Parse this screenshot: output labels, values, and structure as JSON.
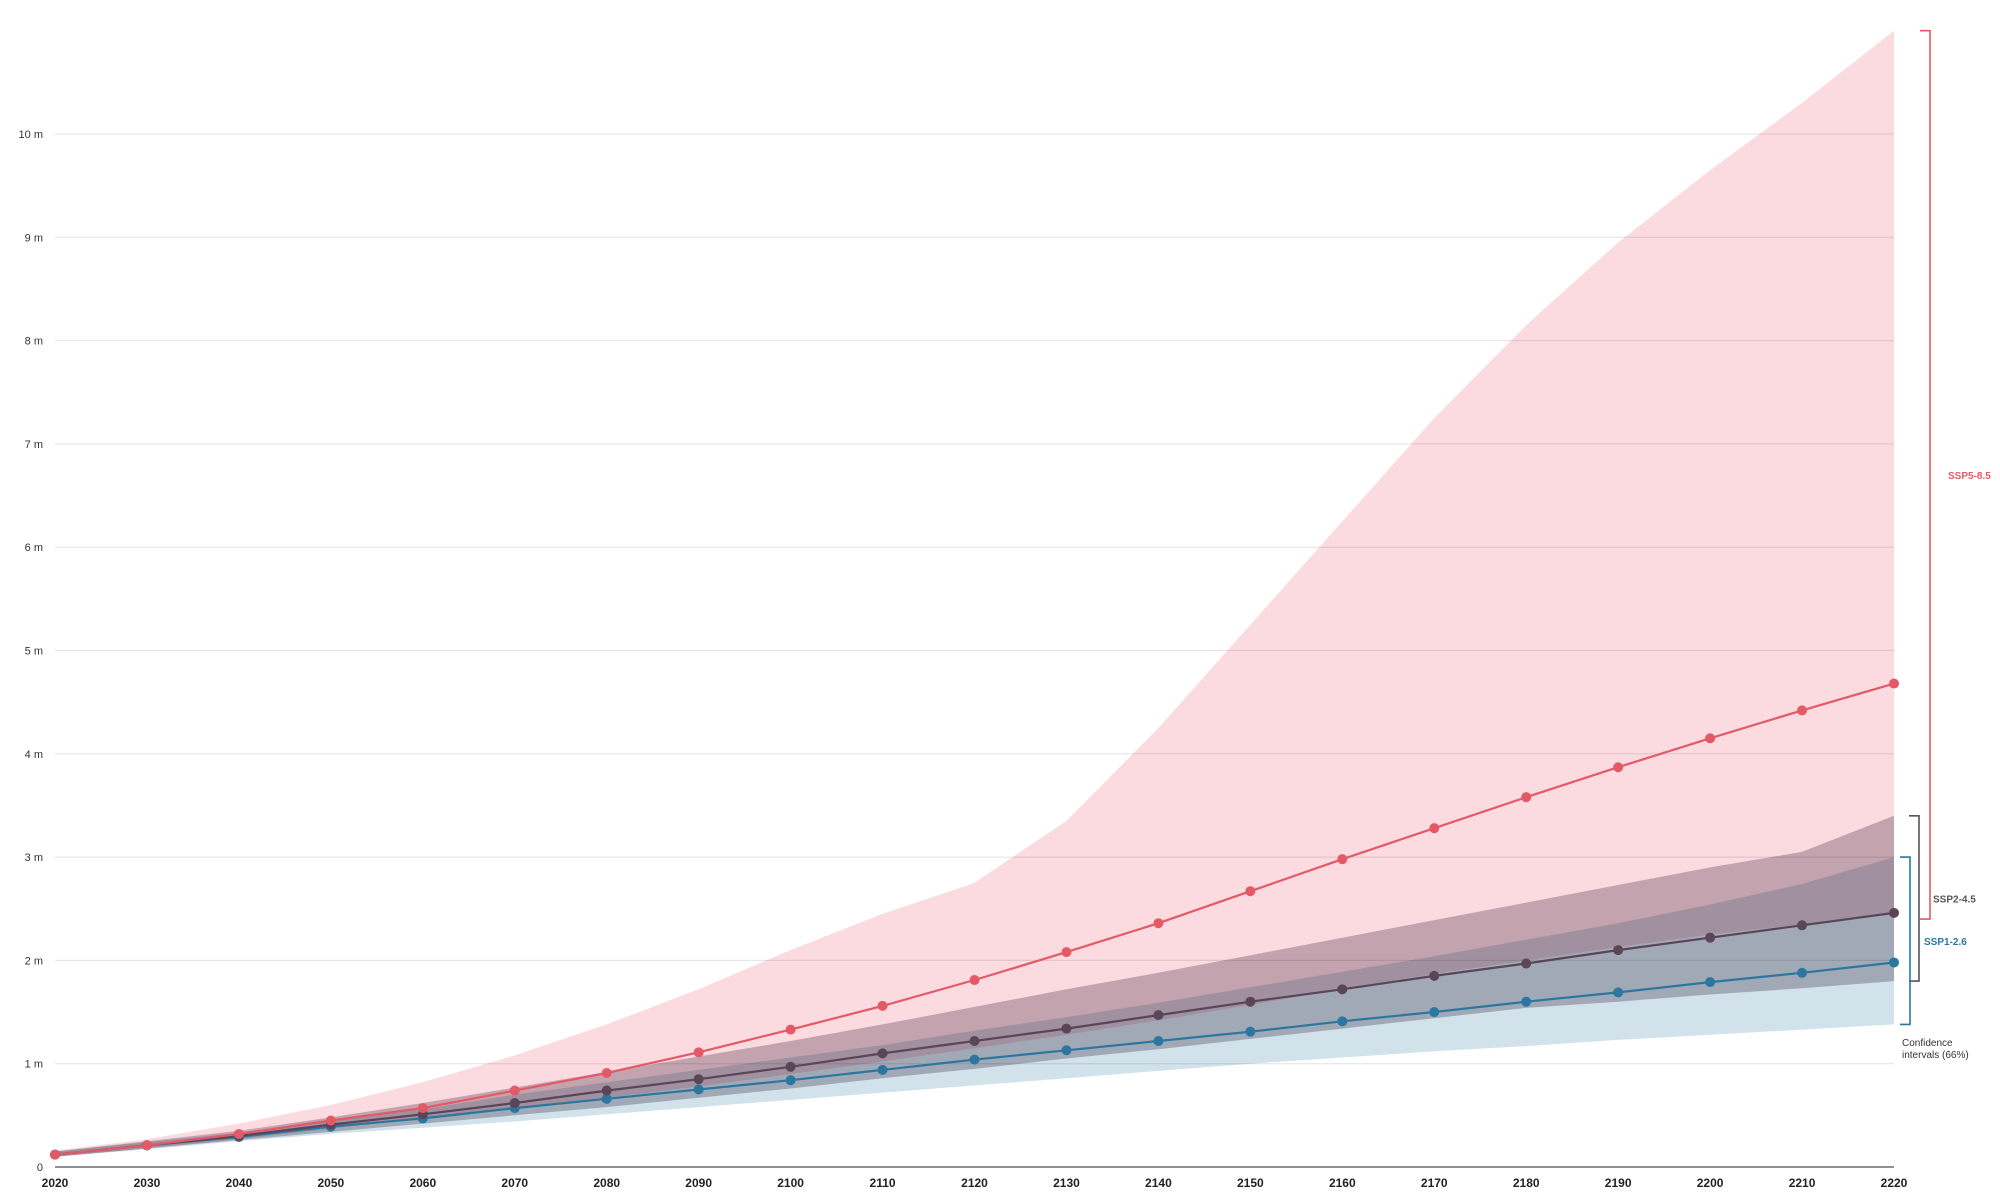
{
  "chart_data": {
    "type": "line",
    "x": [
      2020,
      2030,
      2040,
      2050,
      2060,
      2070,
      2080,
      2090,
      2100,
      2110,
      2120,
      2130,
      2140,
      2150,
      2160,
      2170,
      2180,
      2190,
      2200,
      2210,
      2220
    ],
    "xlim": [
      2020,
      2220
    ],
    "ylim": [
      0,
      11
    ],
    "yticks": [
      0,
      1,
      2,
      3,
      4,
      5,
      6,
      7,
      8,
      9,
      10
    ],
    "ytick_labels": [
      "0",
      "1 m",
      "2 m",
      "3 m",
      "4 m",
      "5 m",
      "6 m",
      "7 m",
      "8 m",
      "9 m",
      "10 m"
    ],
    "xtick_labels": [
      "2020",
      "2030",
      "2040",
      "2050",
      "2060",
      "2070",
      "2080",
      "2090",
      "2100",
      "2110",
      "2120",
      "2130",
      "2140",
      "2150",
      "2160",
      "2170",
      "2180",
      "2190",
      "2200",
      "2210",
      "2220"
    ],
    "grid": true,
    "series": [
      {
        "name": "SSP1-2.6",
        "color": "#2b77a0",
        "band_color": "#c9dde8",
        "values": [
          0.12,
          0.21,
          0.29,
          0.39,
          0.47,
          0.57,
          0.66,
          0.75,
          0.84,
          0.94,
          1.04,
          1.13,
          1.22,
          1.31,
          1.41,
          1.5,
          1.6,
          1.69,
          1.79,
          1.88,
          1.98
        ],
        "lower": [
          0.1,
          0.17,
          0.25,
          0.32,
          0.38,
          0.44,
          0.51,
          0.58,
          0.65,
          0.72,
          0.79,
          0.86,
          0.93,
          1.0,
          1.06,
          1.12,
          1.17,
          1.23,
          1.28,
          1.33,
          1.38
        ],
        "upper": [
          0.15,
          0.24,
          0.33,
          0.45,
          0.56,
          0.7,
          0.82,
          0.94,
          1.06,
          1.18,
          1.32,
          1.45,
          1.59,
          1.74,
          1.89,
          2.04,
          2.2,
          2.36,
          2.54,
          2.74,
          3.0
        ]
      },
      {
        "name": "SSP2-4.5",
        "color": "#5a4656",
        "band_color": "#b3aab3",
        "values": [
          0.12,
          0.21,
          0.3,
          0.41,
          0.51,
          0.62,
          0.74,
          0.85,
          0.97,
          1.1,
          1.22,
          1.34,
          1.47,
          1.6,
          1.72,
          1.85,
          1.97,
          2.1,
          2.22,
          2.34,
          2.46
        ],
        "lower": [
          0.1,
          0.18,
          0.26,
          0.34,
          0.42,
          0.5,
          0.58,
          0.67,
          0.76,
          0.86,
          0.95,
          1.05,
          1.14,
          1.24,
          1.34,
          1.44,
          1.54,
          1.6,
          1.67,
          1.73,
          1.8
        ],
        "upper": [
          0.15,
          0.25,
          0.35,
          0.48,
          0.62,
          0.77,
          0.92,
          1.07,
          1.22,
          1.38,
          1.55,
          1.72,
          1.88,
          2.05,
          2.22,
          2.39,
          2.56,
          2.73,
          2.9,
          3.05,
          3.4
        ]
      },
      {
        "name": "SSP5-8.5",
        "color": "#e35a66",
        "band_color": "#fad4da",
        "values": [
          0.12,
          0.21,
          0.32,
          0.45,
          0.57,
          0.74,
          0.91,
          1.11,
          1.33,
          1.56,
          1.81,
          2.08,
          2.36,
          2.67,
          2.98,
          3.28,
          3.58,
          3.87,
          4.15,
          4.42,
          4.68
        ],
        "lower": [
          0.1,
          0.18,
          0.27,
          0.37,
          0.47,
          0.57,
          0.67,
          0.78,
          0.9,
          1.02,
          1.15,
          1.28,
          1.42,
          1.57,
          1.72,
          1.87,
          2.0,
          2.13,
          2.25,
          2.35,
          2.45
        ],
        "upper": [
          0.16,
          0.27,
          0.42,
          0.6,
          0.82,
          1.08,
          1.38,
          1.72,
          2.1,
          2.45,
          2.75,
          3.35,
          4.25,
          5.25,
          6.25,
          7.25,
          8.15,
          8.95,
          9.65,
          10.3,
          11.0
        ]
      }
    ],
    "brackets": [
      {
        "label": "SSP5-8.5",
        "range": [
          2.4,
          11.0
        ],
        "color": "#e35a66"
      },
      {
        "label": "SSP2-4.5",
        "range": [
          1.8,
          3.4
        ],
        "color": "#555555"
      },
      {
        "label": "SSP1-2.6",
        "range": [
          1.38,
          3.0
        ],
        "color": "#2b77a0"
      }
    ],
    "annotation": [
      "Confidence",
      "intervals (66%)"
    ]
  }
}
